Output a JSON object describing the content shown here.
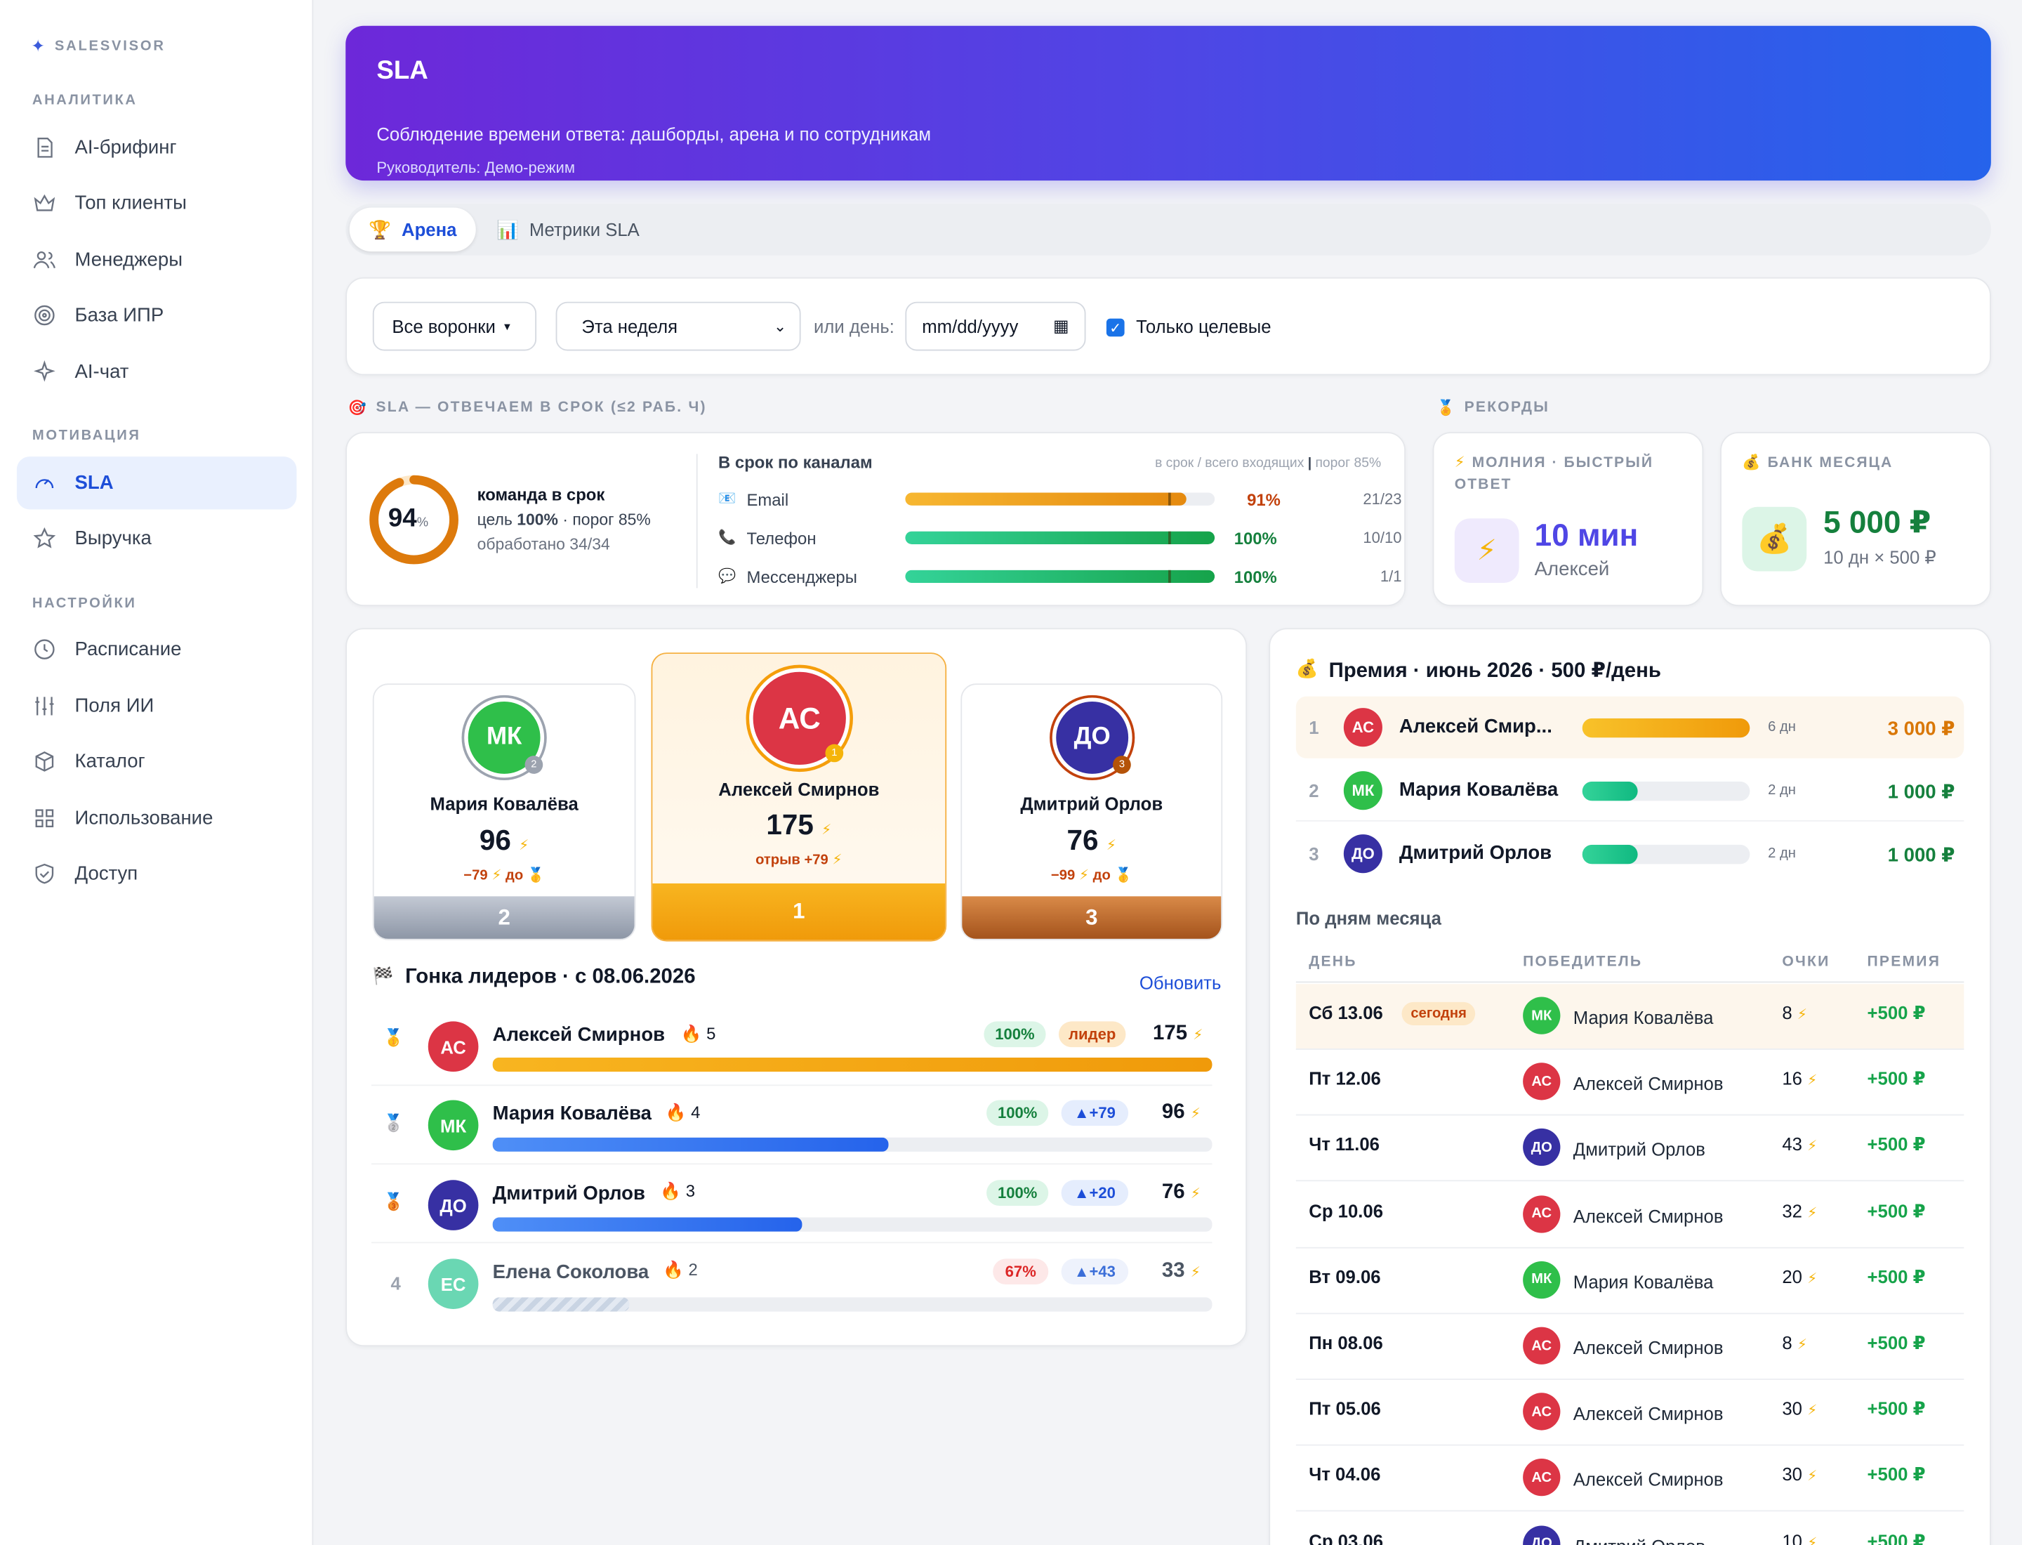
{
  "brand": "SALESVISOR",
  "sidebar": {
    "sec_analytics": "АНАЛИТИКА",
    "sec_motivation": "МОТИВАЦИЯ",
    "sec_settings": "НАСТРОЙКИ",
    "items": [
      "AI-брифинг",
      "Топ клиенты",
      "Менеджеры",
      "База ИПР",
      "AI-чат",
      "SLA",
      "Выручка",
      "Расписание",
      "Поля ИИ",
      "Каталог",
      "Использование",
      "Доступ"
    ]
  },
  "header": {
    "title": "SLA",
    "subtitle": "Соблюдение времени ответа: дашборды, арена и по сотрудникам",
    "manager": "Руководитель: Демо-режим"
  },
  "tabs": [
    "Арена",
    "Метрики SLA"
  ],
  "filters": {
    "funnels": "Все воронки",
    "period": "Эта неделя",
    "or_day": "или день:",
    "date_placeholder": "mm/dd/yyyy",
    "only_target": "Только целевые"
  },
  "sla": {
    "caption": "SLA — ОТВЕЧАЕМ В СРОК (≤2 РАБ. Ч)",
    "team_pct": "94",
    "pct_sign": "%",
    "team_value": 0.94,
    "team_label": "команда в срок",
    "goal_text": "цель ",
    "goal_val": "100%",
    "threshold": " · порог 85%",
    "processed": "обработано 34/34",
    "channels_title": "В срок по каналам",
    "legend": "в срок / всего входящих",
    "threshold_legend": "порог 85%",
    "channels": [
      {
        "name": "Email",
        "pct": "91%",
        "count": "21/23",
        "value": 0.91
      },
      {
        "name": "Телефон",
        "pct": "100%",
        "count": "10/10",
        "value": 1.0
      },
      {
        "name": "Мессенджеры",
        "pct": "100%",
        "count": "1/1",
        "value": 1.0
      }
    ]
  },
  "records": {
    "caption": "РЕКОРДЫ",
    "fast": {
      "title": "МОЛНИЯ · БЫСТРЫЙ ОТВЕТ",
      "value": "10 мин",
      "who": "Алексей"
    },
    "bank": {
      "title": "БАНК МЕСЯЦА",
      "value": "5 000 ₽",
      "note": "10 дн × 500 ₽"
    }
  },
  "podium": [
    {
      "initials": "МК",
      "name": "Мария Ковалёва",
      "score": "96",
      "delta": "−79",
      "to": "до",
      "place": "2"
    },
    {
      "initials": "АС",
      "name": "Алексей Смирнов",
      "score": "175",
      "delta": "отрыв +79",
      "place": "1"
    },
    {
      "initials": "ДО",
      "name": "Дмитрий Орлов",
      "score": "76",
      "delta": "−99",
      "to": "до",
      "place": "3"
    }
  ],
  "race": {
    "title": "Гонка лидеров · с 08.06.2026",
    "refresh": "Обновить",
    "rows": [
      {
        "rank": "1",
        "initials": "АС",
        "name": "Алексей Смирнов",
        "streak": "5",
        "pct": "100%",
        "tag": "лидер",
        "score": "175",
        "progress": 1.0
      },
      {
        "rank": "2",
        "initials": "МК",
        "name": "Мария Ковалёва",
        "streak": "4",
        "pct": "100%",
        "tag": "▲+79",
        "score": "96",
        "progress": 0.55
      },
      {
        "rank": "3",
        "initials": "ДО",
        "name": "Дмитрий Орлов",
        "streak": "3",
        "pct": "100%",
        "tag": "▲+20",
        "score": "76",
        "progress": 0.43
      },
      {
        "rank": "4",
        "initials": "ЕС",
        "name": "Елена Соколова",
        "streak": "2",
        "pct": "67%",
        "tag": "▲+43",
        "score": "33",
        "progress": 0.19
      }
    ]
  },
  "bonus": {
    "title": "Премия · июнь 2026 · 500 ₽/день",
    "rows": [
      {
        "rank": "1",
        "initials": "АС",
        "name": "Алексей Смир...",
        "days": "6 дн",
        "amount": "3 000 ₽",
        "progress": 1.0
      },
      {
        "rank": "2",
        "initials": "МК",
        "name": "Мария Ковалёва",
        "days": "2 дн",
        "amount": "1 000 ₽",
        "progress": 0.33
      },
      {
        "rank": "3",
        "initials": "ДО",
        "name": "Дмитрий Орлов",
        "days": "2 дн",
        "amount": "1 000 ₽",
        "progress": 0.33
      }
    ],
    "by_day": "По дням месяца",
    "cols": [
      "ДЕНЬ",
      "ПОБЕДИТЕЛЬ",
      "ОЧКИ",
      "ПРЕМИЯ"
    ],
    "today": "сегодня",
    "days": [
      {
        "day": "Сб 13.06",
        "initials": "МК",
        "winner": "Мария Ковалёва",
        "pts": "8",
        "bonus": "+500 ₽"
      },
      {
        "day": "Пт 12.06",
        "initials": "АС",
        "winner": "Алексей Смирнов",
        "pts": "16",
        "bonus": "+500 ₽"
      },
      {
        "day": "Чт 11.06",
        "initials": "ДО",
        "winner": "Дмитрий Орлов",
        "pts": "43",
        "bonus": "+500 ₽"
      },
      {
        "day": "Ср 10.06",
        "initials": "АС",
        "winner": "Алексей Смирнов",
        "pts": "32",
        "bonus": "+500 ₽"
      },
      {
        "day": "Вт 09.06",
        "initials": "МК",
        "winner": "Мария Ковалёва",
        "pts": "20",
        "bonus": "+500 ₽"
      },
      {
        "day": "Пн 08.06",
        "initials": "АС",
        "winner": "Алексей Смирнов",
        "pts": "8",
        "bonus": "+500 ₽"
      },
      {
        "day": "Пт 05.06",
        "initials": "АС",
        "winner": "Алексей Смирнов",
        "pts": "30",
        "bonus": "+500 ₽"
      },
      {
        "day": "Чт 04.06",
        "initials": "АС",
        "winner": "Алексей Смирнов",
        "pts": "30",
        "bonus": "+500 ₽"
      },
      {
        "day": "Ср 03.06",
        "initials": "ДО",
        "winner": "Дмитрий Орлов",
        "pts": "10",
        "bonus": "+500 ₽"
      }
    ]
  },
  "colors": {
    "accent": "#1d4ed8",
    "gold": "#f5a30a",
    "green": "#16a34a",
    "orange": "#c2410c"
  }
}
